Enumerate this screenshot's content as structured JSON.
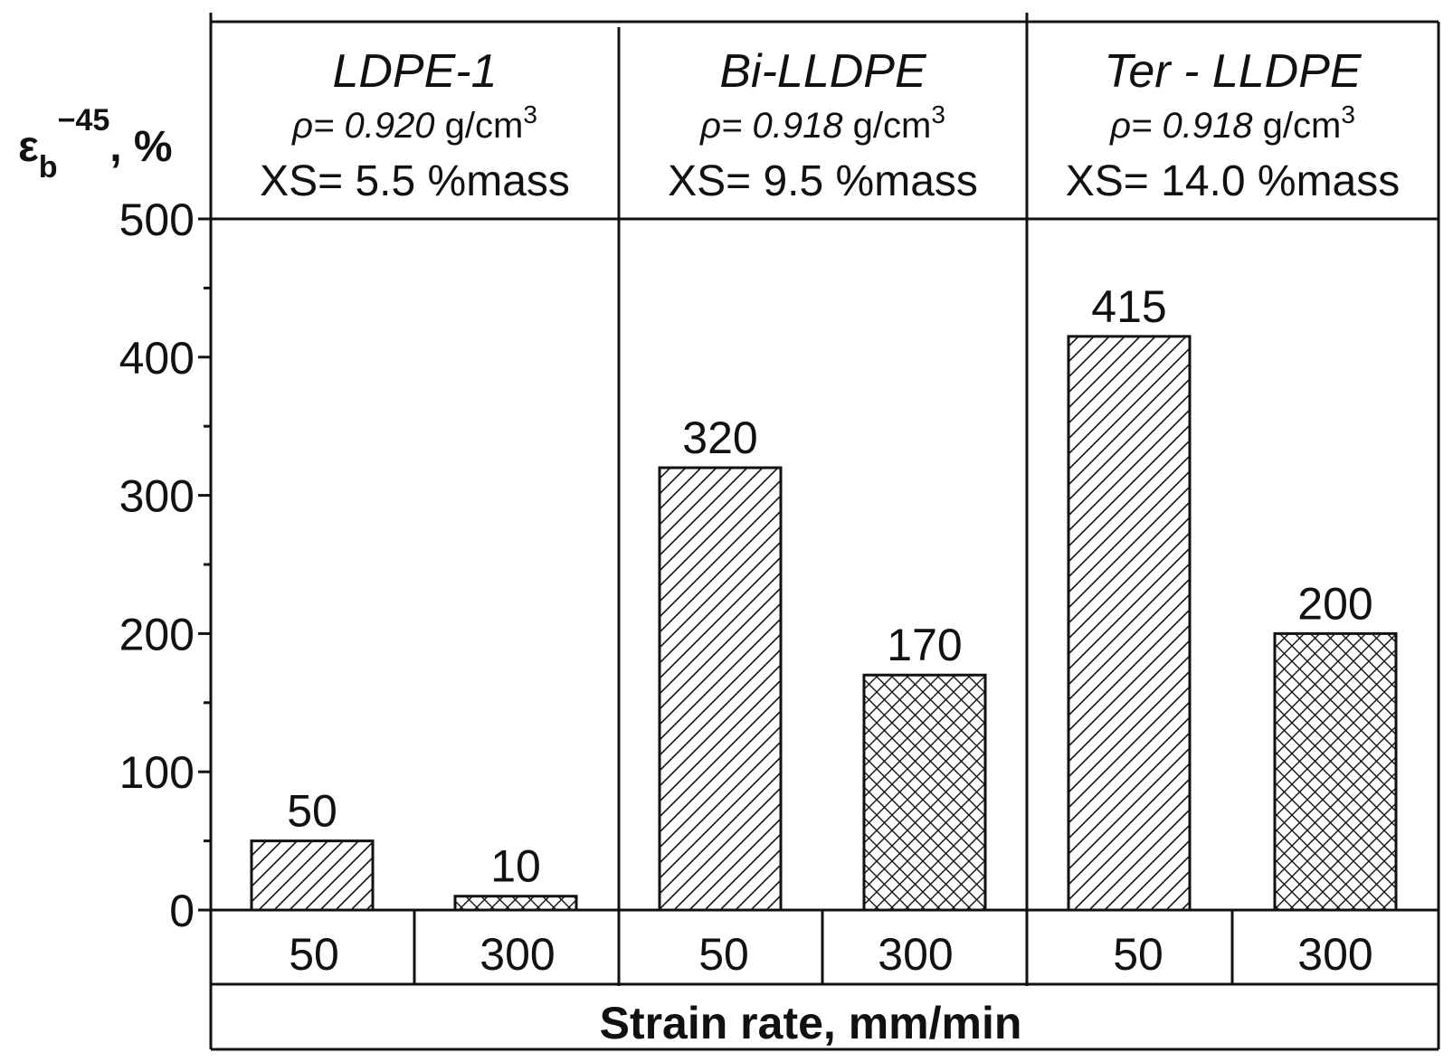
{
  "chart_data": {
    "type": "bar",
    "ylabel_symbol": "ε",
    "ylabel_sub": "b",
    "ylabel_sup": "−45",
    "ylabel_unit": ", %",
    "xlabel": "Strain rate, mm/min",
    "ylim": [
      0,
      500
    ],
    "y_ticks": [
      "0",
      "100",
      "200",
      "300",
      "400",
      "500"
    ],
    "grid": false,
    "groups": [
      {
        "name": "LDPE-1",
        "density_symbol": "ρ",
        "density_value": "= 0.920",
        "density_unit": " g/cm",
        "density_unit_sup": "3",
        "xs": "XS= 5.5 %mass",
        "categories": [
          "50",
          "300"
        ],
        "values": [
          50,
          10
        ],
        "value_labels": [
          "50",
          "10"
        ]
      },
      {
        "name": "Bi-LLDPE",
        "density_symbol": "ρ",
        "density_value": "= 0.918",
        "density_unit": " g/cm",
        "density_unit_sup": "3",
        "xs": "XS= 9.5 %mass",
        "categories": [
          "50",
          "300"
        ],
        "values": [
          320,
          170
        ],
        "value_labels": [
          "320",
          "170"
        ]
      },
      {
        "name": "Ter - LLDPE",
        "density_symbol": "ρ",
        "density_value": "= 0.918",
        "density_unit": " g/cm",
        "density_unit_sup": "3",
        "xs": "XS= 14.0 %mass",
        "categories": [
          "50",
          "300"
        ],
        "values": [
          415,
          200
        ],
        "value_labels": [
          "415",
          "200"
        ]
      }
    ],
    "patterns": [
      "diagonal-hatch",
      "cross-hatch"
    ],
    "colors": {
      "ink": "#111111",
      "background": "#ffffff"
    }
  }
}
